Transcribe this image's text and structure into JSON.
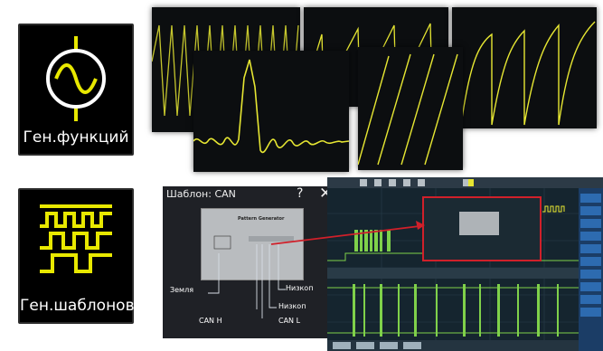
{
  "tiles": {
    "function_generator_label": "Ген.функций",
    "pattern_generator_label": "Ген.шаблонов"
  },
  "colors": {
    "trace": "#e6e632",
    "tile_icon": "#e8e800",
    "arrow": "#d0202a"
  },
  "dialog": {
    "title": "Шаблон: CAN",
    "help": "?",
    "close": "✕",
    "panel_title": "Pattern Generator",
    "pin_labels": [
      "Земля",
      "CAN H",
      "CAN L",
      "Низкоп",
      "Низкоп"
    ]
  }
}
